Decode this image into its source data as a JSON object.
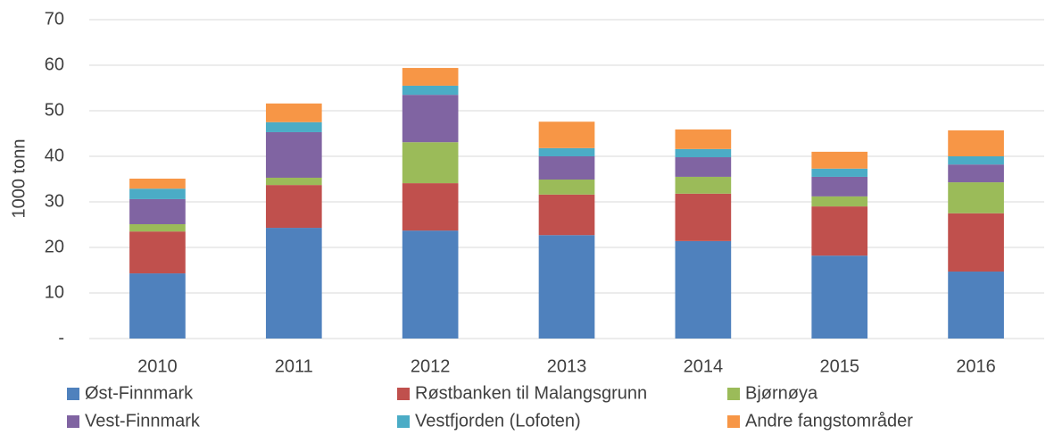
{
  "chart_data": {
    "type": "bar",
    "stacked": true,
    "y_label": "1000 tonn",
    "categories": [
      "2010",
      "2011",
      "2012",
      "2013",
      "2014",
      "2015",
      "2016"
    ],
    "series": [
      {
        "name": "Øst-Finnmark",
        "color": "#4f81bd",
        "values": [
          14.3,
          24.3,
          23.7,
          22.7,
          21.4,
          18.2,
          14.7
        ]
      },
      {
        "name": "Røstbanken til Malangsgrunn",
        "color": "#c0504d",
        "values": [
          9.2,
          9.4,
          10.4,
          8.9,
          10.4,
          10.8,
          12.8
        ]
      },
      {
        "name": "Bjørnøya",
        "color": "#9bbb59",
        "values": [
          1.6,
          1.6,
          9.0,
          3.3,
          3.7,
          2.2,
          6.8
        ]
      },
      {
        "name": "Vest-Finnmark",
        "color": "#8064a2",
        "values": [
          5.5,
          10.0,
          10.4,
          5.1,
          4.3,
          4.3,
          3.9
        ]
      },
      {
        "name": "Vestfjorden (Lofoten)",
        "color": "#4bacc6",
        "values": [
          2.3,
          2.2,
          2.0,
          1.8,
          1.8,
          1.8,
          1.8
        ]
      },
      {
        "name": "Andre fangstområder",
        "color": "#f79646",
        "values": [
          2.2,
          4.1,
          3.9,
          5.8,
          4.3,
          3.7,
          5.7
        ]
      }
    ],
    "ylim": [
      0,
      70
    ],
    "yticks": [
      {
        "value": 0,
        "label": "-"
      },
      10,
      20,
      30,
      40,
      50,
      60,
      70
    ],
    "grid": true,
    "legend": "bottom"
  }
}
